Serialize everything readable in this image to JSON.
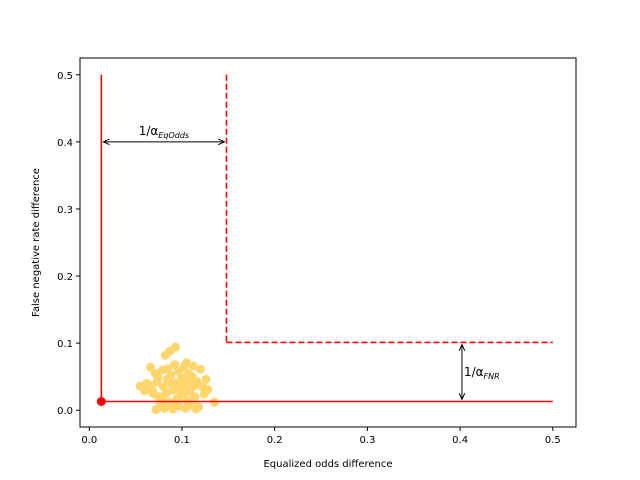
{
  "chart_data": {
    "type": "scatter",
    "xlabel": "Equalized odds difference",
    "ylabel": "False negative rate difference",
    "xlim": [
      -0.01,
      0.525
    ],
    "ylim": [
      -0.025,
      0.525
    ],
    "xticks": [
      "0.0",
      "0.1",
      "0.2",
      "0.3",
      "0.4",
      "0.5"
    ],
    "yticks": [
      "0.0",
      "0.1",
      "0.2",
      "0.3",
      "0.4",
      "0.5"
    ],
    "grid": false,
    "legend": "none",
    "colors": {
      "points": "#ffd66e",
      "lines": "#ff0000",
      "arrows": "#000000"
    },
    "point_cloud": [
      [
        0.055,
        0.036
      ],
      [
        0.06,
        0.029
      ],
      [
        0.062,
        0.04
      ],
      [
        0.066,
        0.064
      ],
      [
        0.068,
        0.03
      ],
      [
        0.071,
        0.055
      ],
      [
        0.073,
        0.042
      ],
      [
        0.075,
        0.02
      ],
      [
        0.072,
        0.001
      ],
      [
        0.077,
        0.01
      ],
      [
        0.079,
        0.06
      ],
      [
        0.08,
        0.035
      ],
      [
        0.082,
        0.082
      ],
      [
        0.083,
        0.025
      ],
      [
        0.084,
        0.046
      ],
      [
        0.086,
        0.012
      ],
      [
        0.087,
        0.088
      ],
      [
        0.088,
        0.052
      ],
      [
        0.09,
        0.03
      ],
      [
        0.09,
        0.002
      ],
      [
        0.092,
        0.068
      ],
      [
        0.093,
        0.094
      ],
      [
        0.094,
        0.041
      ],
      [
        0.095,
        0.018
      ],
      [
        0.096,
        0.058
      ],
      [
        0.097,
        0.006
      ],
      [
        0.098,
        0.033
      ],
      [
        0.1,
        0.048
      ],
      [
        0.101,
        0.022
      ],
      [
        0.102,
        0.064
      ],
      [
        0.103,
        0.037
      ],
      [
        0.104,
        0.003
      ],
      [
        0.105,
        0.071
      ],
      [
        0.106,
        0.014
      ],
      [
        0.107,
        0.054
      ],
      [
        0.108,
        0.028
      ],
      [
        0.109,
        0.045
      ],
      [
        0.11,
        0.008
      ],
      [
        0.112,
        0.066
      ],
      [
        0.113,
        0.036
      ],
      [
        0.114,
        0.02
      ],
      [
        0.115,
        0.002
      ],
      [
        0.116,
        0.043
      ],
      [
        0.118,
        0.005
      ],
      [
        0.12,
        0.061
      ],
      [
        0.122,
        0.035
      ],
      [
        0.124,
        0.024
      ],
      [
        0.126,
        0.046
      ],
      [
        0.128,
        0.031
      ],
      [
        0.135,
        0.012
      ],
      [
        0.078,
        0.015
      ],
      [
        0.081,
        0.003
      ],
      [
        0.085,
        0.062
      ],
      [
        0.089,
        0.039
      ],
      [
        0.091,
        0.011
      ],
      [
        0.099,
        0.026
      ],
      [
        0.074,
        0.049
      ],
      [
        0.069,
        0.025
      ],
      [
        0.064,
        0.038
      ],
      [
        0.111,
        0.05
      ]
    ],
    "highlight_point": {
      "x": 0.013,
      "y": 0.013
    },
    "solid_bound": {
      "x": 0.013,
      "y": 0.013,
      "x_end": 0.5,
      "y_end": 0.5
    },
    "dashed_bound": {
      "x": 0.148,
      "y": 0.101,
      "x_end": 0.5,
      "y_end": 0.5
    },
    "annotations": [
      {
        "text": "1/α",
        "sub": "EqOdds",
        "x_from": 0.013,
        "x_to": 0.148,
        "y": 0.4
      },
      {
        "text": "1/α",
        "sub": "FNR",
        "x": 0.402,
        "y_from": 0.013,
        "y_to": 0.101
      }
    ]
  }
}
